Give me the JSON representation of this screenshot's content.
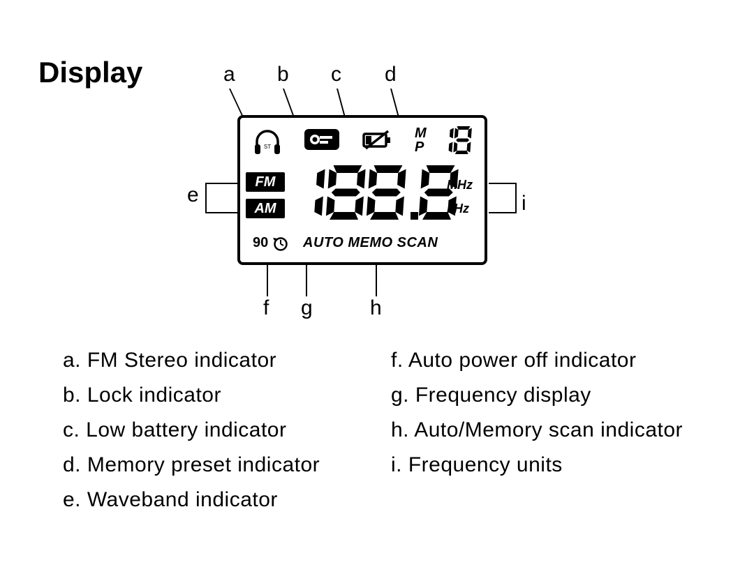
{
  "title": "Display",
  "callouts": {
    "a": "a",
    "b": "b",
    "c": "c",
    "d": "d",
    "e": "e",
    "f": "f",
    "g": "g",
    "h": "h",
    "i": "i"
  },
  "lcd": {
    "stereo_label": "ST",
    "band_fm": "FM",
    "band_am": "AM",
    "mp_m": "M",
    "mp_p": "P",
    "preset_digits": "18",
    "units_mhz": "MHz",
    "units_khz": "kHz",
    "ninety": "90",
    "auto_memo_scan": "AUTO MEMO SCAN",
    "freq_digits": "188.8",
    "seven_seg": {
      "digit_width": 52,
      "digit_height": 78,
      "stroke": 11,
      "gap": 6,
      "color": "#000000"
    },
    "small_seven_seg": {
      "digit_width": 24,
      "digit_height": 40,
      "stroke": 5,
      "gap": 2,
      "color": "#000000"
    }
  },
  "legend": {
    "left": [
      "a. FM Stereo indicator",
      "b. Lock indicator",
      "c. Low battery indicator",
      "d. Memory preset indicator",
      "e. Waveband indicator"
    ],
    "right": [
      "f. Auto power off indicator",
      "g. Frequency display",
      "h. Auto/Memory scan indicator",
      "i. Frequency units"
    ]
  },
  "colors": {
    "fg": "#000000",
    "bg": "#ffffff"
  }
}
